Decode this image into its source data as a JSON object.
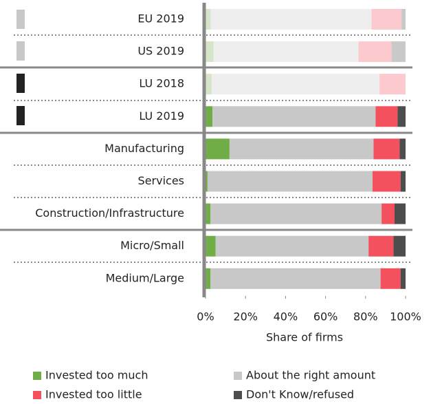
{
  "chart_data": {
    "type": "stacked_barh",
    "categories": [
      "EU 2019",
      "US 2019",
      "LU 2018",
      "LU 2019",
      "Manufacturing",
      "Services",
      "Construction/Infrastructure",
      "Micro/Small",
      "Medium/Large"
    ],
    "series": [
      {
        "name": "Invested too much",
        "color": "#70ad47",
        "values": [
          2.5,
          4,
          3,
          3.5,
          12,
          1,
          2.5,
          5,
          2.5
        ]
      },
      {
        "name": "About the right amount",
        "color": "#c8c8c8",
        "values": [
          80.5,
          72.5,
          84,
          81.5,
          72,
          82.5,
          85.5,
          76.5,
          85
        ]
      },
      {
        "name": "Invested too little",
        "color": "#f4515e",
        "values": [
          15,
          16.5,
          13,
          11,
          13,
          14,
          6.5,
          12.5,
          10
        ]
      },
      {
        "name": "Don't Know/refused",
        "color": "#4d4d4d",
        "values": [
          2,
          7,
          0,
          4,
          3,
          2.5,
          5.5,
          6,
          2.5
        ]
      }
    ],
    "row_opacity": [
      0.3,
      0.3,
      0.3,
      1,
      1,
      1,
      1,
      1,
      1
    ],
    "xlim": [
      0,
      100
    ],
    "xticks": [
      {
        "value": 0,
        "label": "0%"
      },
      {
        "value": 20,
        "label": "20%"
      },
      {
        "value": 40,
        "label": "40%"
      },
      {
        "value": 60,
        "label": "60%"
      },
      {
        "value": 80,
        "label": "80%"
      },
      {
        "value": 100,
        "label": "100%"
      }
    ],
    "xlabel": "Share of firms"
  }
}
